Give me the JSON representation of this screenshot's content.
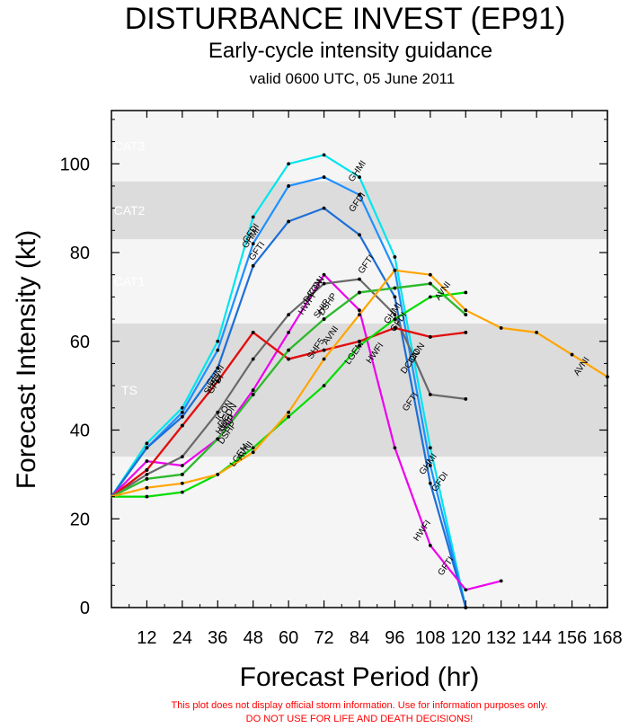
{
  "chart_data": {
    "type": "line",
    "title": "DISTURBANCE INVEST (EP91)",
    "subtitle": "Early-cycle intensity guidance",
    "valid_time": "valid 0600 UTC, 05 June 2011",
    "xlabel": "Forecast Period (hr)",
    "ylabel": "Forecast Intensity (kt)",
    "xlim": [
      0,
      168
    ],
    "ylim": [
      0,
      112
    ],
    "x_ticks": [
      12,
      24,
      36,
      48,
      60,
      72,
      84,
      96,
      108,
      120,
      132,
      144,
      156,
      168
    ],
    "x_tick_labels": [
      "12",
      "24",
      "36",
      "48",
      "60",
      "72",
      "84",
      "96",
      "108",
      "120",
      "132",
      "144",
      "156",
      "168"
    ],
    "y_ticks": [
      0,
      20,
      40,
      60,
      80,
      100
    ],
    "y_tick_labels": [
      "0",
      "20",
      "40",
      "60",
      "80",
      "100"
    ],
    "intensity_bands": [
      {
        "name": "TS",
        "from": 34,
        "to": 64,
        "shade": "#dcdcdc"
      },
      {
        "name": "CAT1",
        "from": 64,
        "to": 83,
        "shade": "#f5f5f5"
      },
      {
        "name": "CAT2",
        "from": 83,
        "to": 96,
        "shade": "#dcdcdc"
      },
      {
        "name": "CAT3",
        "from": 96,
        "to": 112,
        "shade": "#f5f5f5"
      }
    ],
    "series": [
      {
        "name": "GHMI",
        "color": "#00e5ee",
        "x": [
          0,
          12,
          24,
          36,
          48,
          60,
          72,
          84,
          96,
          108,
          120
        ],
        "y": [
          25,
          37,
          45,
          60,
          88,
          100,
          102,
          97,
          79,
          36,
          0
        ],
        "labels": [
          {
            "x": 36,
            "y": 52
          },
          {
            "x": 48,
            "y": 83
          },
          {
            "x": 84,
            "y": 98
          },
          {
            "x": 96,
            "y": 66
          },
          {
            "x": 108,
            "y": 32
          }
        ]
      },
      {
        "name": "GFDI",
        "color": "#1e90ff",
        "x": [
          0,
          12,
          24,
          36,
          48,
          60,
          72,
          84,
          96,
          108,
          120
        ],
        "y": [
          25,
          36,
          44,
          58,
          82,
          95,
          97,
          93,
          76,
          32,
          0
        ],
        "labels": [
          {
            "x": 36,
            "y": 50
          },
          {
            "x": 48,
            "y": 84
          },
          {
            "x": 84,
            "y": 91
          },
          {
            "x": 98,
            "y": 64
          },
          {
            "x": 112,
            "y": 28
          }
        ]
      },
      {
        "name": "GFTI",
        "color": "#1c6fd6",
        "x": [
          0,
          12,
          24,
          36,
          48,
          60,
          72,
          84,
          96,
          108,
          120
        ],
        "y": [
          25,
          36,
          43,
          54,
          77,
          87,
          90,
          84,
          70,
          28,
          0
        ],
        "labels": [
          {
            "x": 50,
            "y": 80
          },
          {
            "x": 87,
            "y": 77
          },
          {
            "x": 102,
            "y": 46
          },
          {
            "x": 114,
            "y": 9
          }
        ]
      },
      {
        "name": "HWFI",
        "color": "#ee00ee",
        "x": [
          0,
          12,
          24,
          36,
          48,
          60,
          72,
          84,
          96,
          108,
          120,
          132
        ],
        "y": [
          25,
          33,
          32,
          38,
          49,
          62,
          75,
          67,
          36,
          14,
          4,
          6
        ],
        "labels": [
          {
            "x": 39,
            "y": 41
          },
          {
            "x": 67,
            "y": 68
          },
          {
            "x": 90,
            "y": 57
          },
          {
            "x": 106,
            "y": 17
          }
        ]
      },
      {
        "name": "DCON",
        "color": "#696969",
        "x": [
          0,
          12,
          24,
          36,
          48,
          60,
          72,
          84,
          96,
          108,
          120
        ],
        "y": [
          25,
          30,
          34,
          44,
          56,
          66,
          73,
          74,
          66,
          48,
          47
        ],
        "labels": [
          {
            "x": 40,
            "y": 43
          },
          {
            "x": 69,
            "y": 71
          },
          {
            "x": 102,
            "y": 55
          }
        ]
      },
      {
        "name": "ICON",
        "color": "#ff0000",
        "x": [
          0,
          12,
          24,
          36,
          48,
          60,
          72,
          84,
          96,
          108,
          120
        ],
        "y": [
          25,
          31,
          41,
          51,
          62,
          56,
          58,
          60,
          63,
          61,
          62
        ],
        "labels": [
          {
            "x": 39,
            "y": 44
          },
          {
            "x": 70,
            "y": 72
          },
          {
            "x": 104,
            "y": 57
          }
        ]
      },
      {
        "name": "SHF5",
        "color": "#e01010",
        "x": [
          0,
          12,
          24,
          36,
          48,
          60,
          72,
          84,
          96,
          108,
          120
        ],
        "y": [
          25,
          31,
          41,
          51,
          62,
          56,
          58,
          60,
          63,
          61,
          62
        ],
        "labels": [
          {
            "x": 35,
            "y": 50
          },
          {
            "x": 70,
            "y": 58
          }
        ]
      },
      {
        "name": "SHIP",
        "color": "#32cd32",
        "x": [
          0,
          12,
          24,
          36,
          48,
          60,
          72,
          84,
          96,
          108,
          120
        ],
        "y": [
          25,
          29,
          30,
          38,
          48,
          58,
          65,
          71,
          72,
          73,
          66
        ],
        "labels": [
          {
            "x": 40,
            "y": 41
          },
          {
            "x": 72,
            "y": 67
          }
        ]
      },
      {
        "name": "DSHP",
        "color": "#2eb82e",
        "x": [
          0,
          12,
          24,
          36,
          48,
          60,
          72,
          84,
          96,
          108,
          120
        ],
        "y": [
          25,
          29,
          30,
          38,
          48,
          58,
          65,
          71,
          72,
          73,
          66
        ],
        "labels": [
          {
            "x": 40,
            "y": 39
          },
          {
            "x": 74,
            "y": 68
          }
        ]
      },
      {
        "name": "LGEM",
        "color": "#00dd00",
        "x": [
          0,
          12,
          24,
          36,
          48,
          60,
          72,
          84,
          96,
          108,
          120
        ],
        "y": [
          25,
          25,
          26,
          30,
          36,
          43,
          50,
          59,
          65,
          70,
          71
        ],
        "labels": [
          {
            "x": 44,
            "y": 34
          },
          {
            "x": 83,
            "y": 57
          }
        ]
      },
      {
        "name": "AVNI",
        "color": "#ffa500",
        "x": [
          0,
          12,
          24,
          36,
          48,
          60,
          72,
          84,
          96,
          108,
          120,
          132,
          144,
          156,
          168
        ],
        "y": [
          25,
          27,
          28,
          30,
          35,
          44,
          56,
          66,
          76,
          75,
          67,
          63,
          62,
          57,
          52
        ],
        "labels": [
          {
            "x": 46,
            "y": 35
          },
          {
            "x": 75,
            "y": 61
          },
          {
            "x": 113,
            "y": 71
          },
          {
            "x": 160,
            "y": 54
          }
        ]
      }
    ]
  },
  "disclaimer": {
    "line1": "This plot does not display official storm information. Use for information purposes only.",
    "line2": "DO NOT USE FOR LIFE AND DEATH DECISIONS!"
  }
}
